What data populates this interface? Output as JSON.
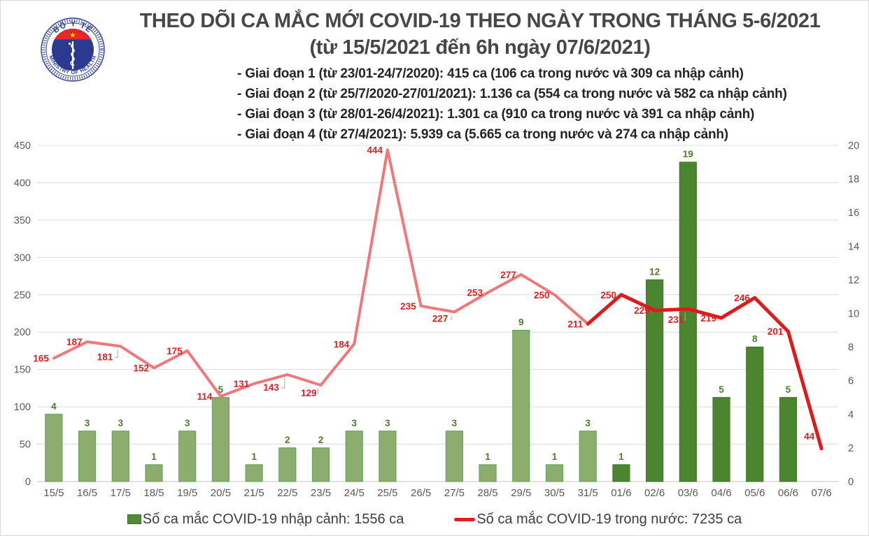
{
  "logo": {
    "top_text": "BỘ Y TẾ",
    "bottom_text": "MINISTRY OF HEALTH"
  },
  "header": {
    "title": "THEO DÕI CA MẮC MỚI COVID-19 THEO NGÀY TRONG THÁNG 5-6/2021",
    "subtitle": "(từ 15/5/2021 đến 6h ngày 07/6/2021)",
    "stages": [
      "- Giai đoạn 1 (từ 23/01-24/7/2020): 415 ca (106 ca trong nước và 309 ca nhập cảnh)",
      "- Giai đoạn 2 (từ 25/7/2020-27/01/2021): 1.136 ca (554 ca trong nước và 582 ca nhập cảnh)",
      "- Giai đoạn 3 (từ 28/01-26/4/2021): 1.301 ca (910 ca trong nước và 391 ca nhập cảnh)",
      "- Giai đoạn 4 (từ 27/4/2021): 5.939 ca (5.665 ca trong nước và 274 ca nhập cảnh)"
    ]
  },
  "chart_data": {
    "type": "combo-bar-line",
    "categories": [
      "15/5",
      "16/5",
      "17/5",
      "18/5",
      "19/5",
      "20/5",
      "21/5",
      "22/5",
      "23/5",
      "24/5",
      "25/5",
      "26/5",
      "27/5",
      "28/5",
      "29/5",
      "30/5",
      "31/5",
      "01/6",
      "02/6",
      "03/6",
      "04/6",
      "05/6",
      "06/6",
      "07/6"
    ],
    "series": [
      {
        "name": "Số ca mắc COVID-19 nhập cảnh",
        "type": "bar",
        "axis": "right",
        "values": [
          4,
          3,
          3,
          1,
          3,
          5,
          1,
          2,
          2,
          3,
          3,
          null,
          3,
          1,
          9,
          1,
          3,
          1,
          12,
          19,
          5,
          8,
          5,
          null
        ]
      },
      {
        "name": "Số ca mắc COVID-19 trong nước",
        "type": "line",
        "axis": "left",
        "values": [
          165,
          187,
          181,
          152,
          175,
          114,
          131,
          143,
          129,
          184,
          444,
          235,
          227,
          253,
          277,
          250,
          211,
          250,
          229,
          231,
          219,
          246,
          201,
          44
        ]
      }
    ],
    "left_axis": {
      "min": 0,
      "max": 450,
      "step": 50
    },
    "right_axis": {
      "min": 0,
      "max": 20,
      "step": 2
    },
    "grid": true,
    "legend_position": "bottom",
    "emphasis": {
      "bar_dark_from_index": 17,
      "line_dark_from_index": 16
    }
  },
  "colors": {
    "bar_light": "#8CAD6E",
    "bar_light_border": "#61A75C",
    "bar_dark": "#4C8530",
    "bar_dark_border": "#447929",
    "line_light": "#F0787B",
    "line_dark": "#E01A1B",
    "label_red": "#E02020",
    "label_green": "#4E7D2A",
    "axis_text": "#595959",
    "gridline": "#DCDCDC",
    "baseline": "#C6C6C6",
    "logo_blue": "#2B3990",
    "logo_red": "#E8252A",
    "logo_star": "#FFDE00"
  },
  "legend": {
    "items": [
      {
        "label": "Số ca mắc COVID-19 nhập cảnh: 1556 ca",
        "marker": "bar",
        "color": "#4F8B39",
        "border": "#3A6E28"
      },
      {
        "label": "Số ca mắc COVID-19 trong nước: 7235 ca",
        "marker": "line",
        "color": "#E02020"
      }
    ]
  }
}
